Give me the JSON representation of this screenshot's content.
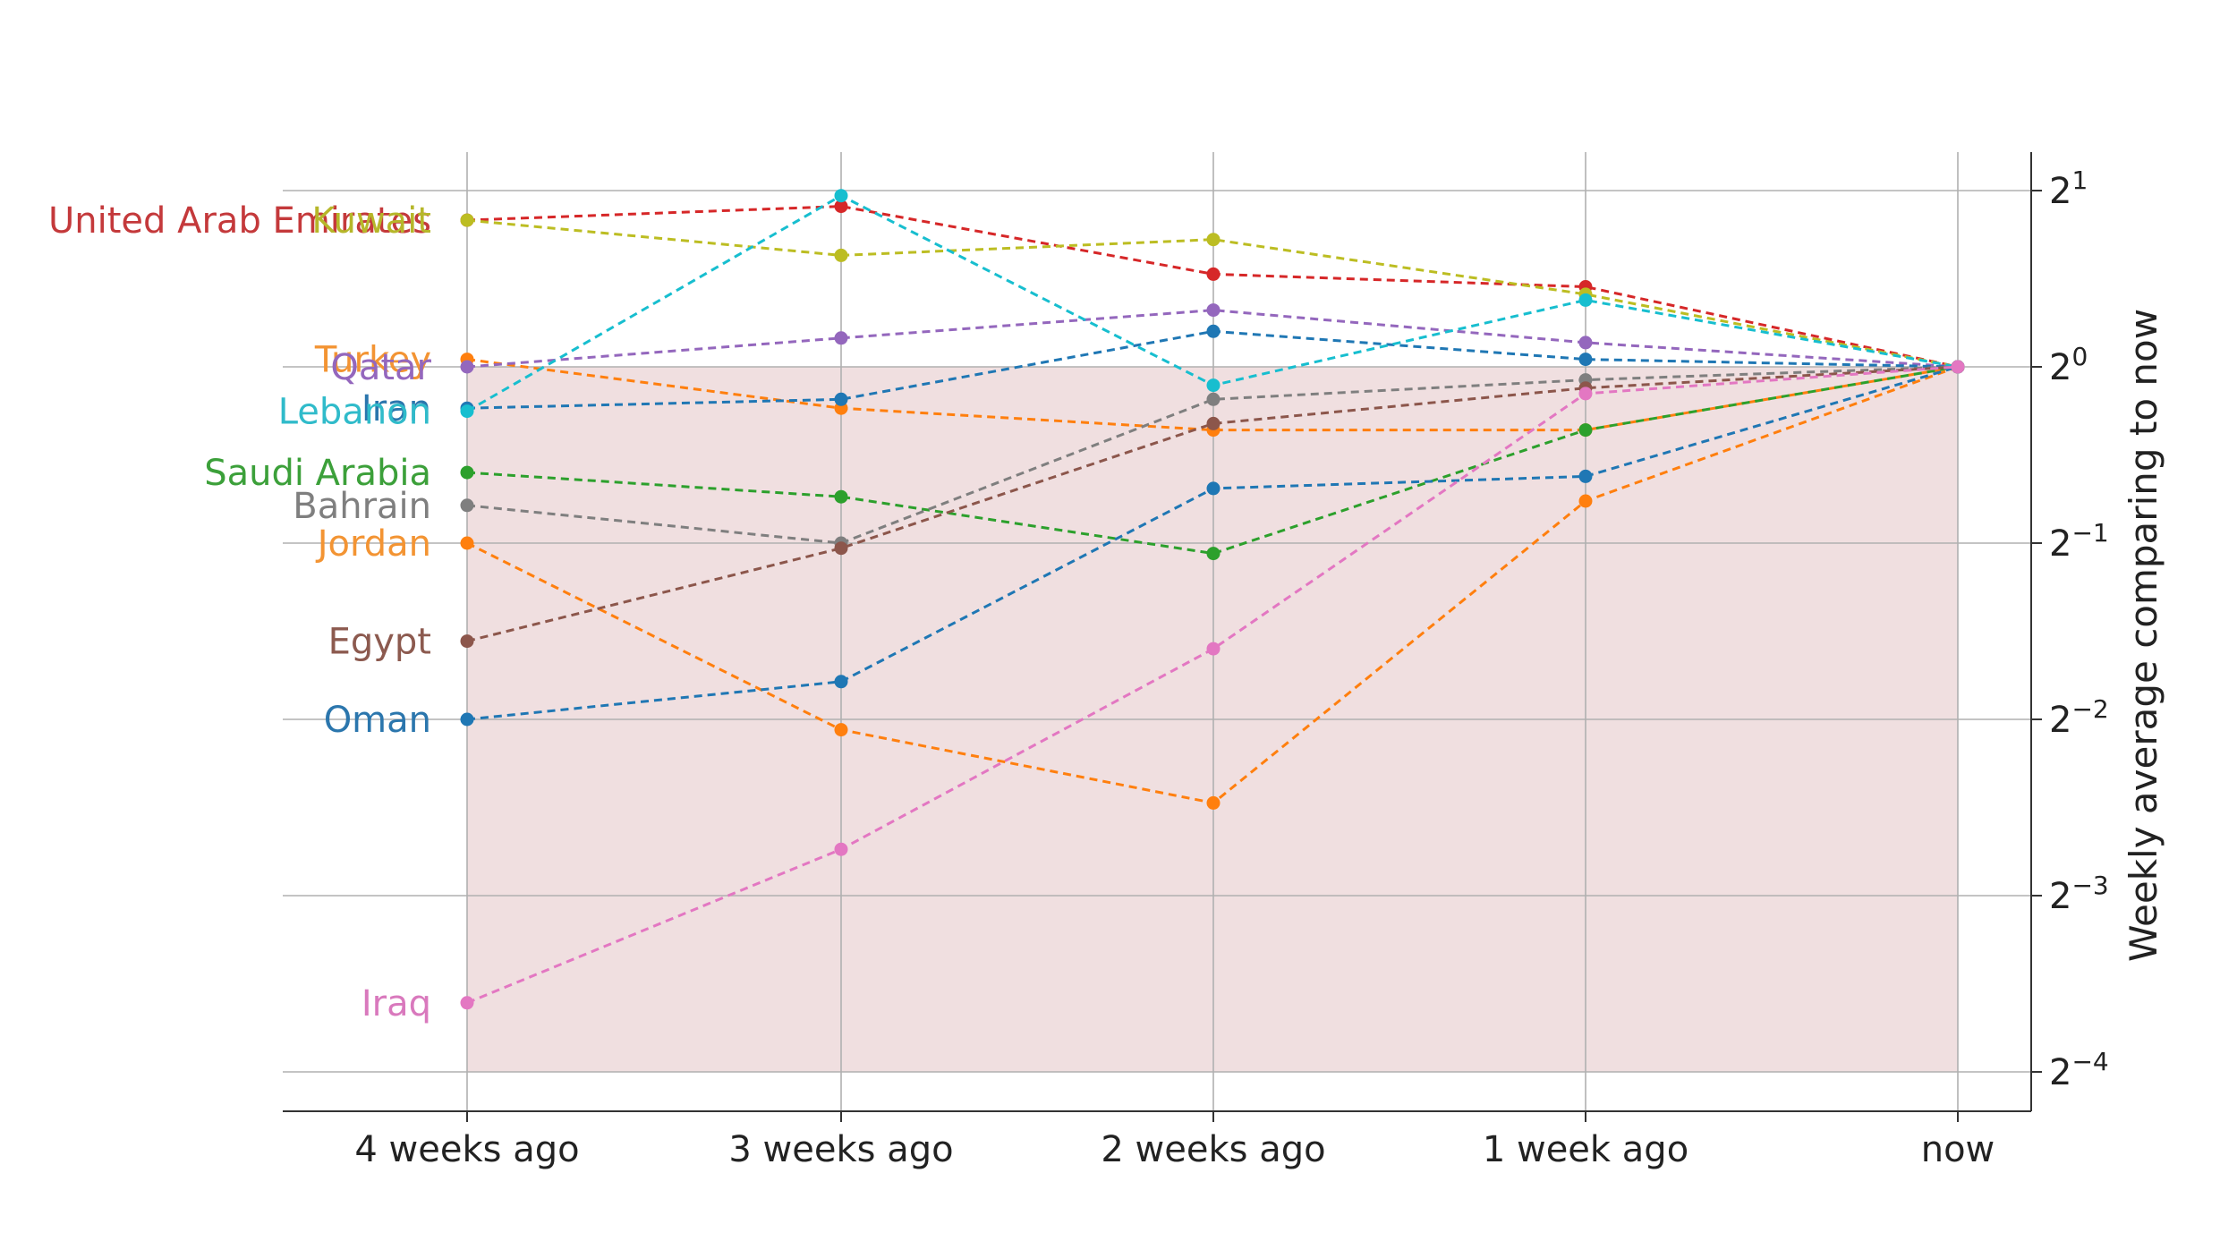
{
  "chart_data": {
    "type": "line",
    "title": "",
    "xlabel": "",
    "ylabel": "Weekly average comparing to now",
    "y_scale": "log2",
    "ylim": [
      0.05,
      2.3
    ],
    "grid": true,
    "y_axis_side": "right",
    "shaded_region": {
      "from": 0.0625,
      "to": 1,
      "color": "#f0dfe0"
    },
    "categories": [
      "4 weeks ago",
      "3 weeks ago",
      "2 weeks ago",
      "1 week ago",
      "now"
    ],
    "y_ticks": [
      {
        "value": 2,
        "base": "2",
        "exp": "1"
      },
      {
        "value": 1,
        "base": "2",
        "exp": "0"
      },
      {
        "value": 0.5,
        "base": "2",
        "exp": "−1"
      },
      {
        "value": 0.25,
        "base": "2",
        "exp": "−2"
      },
      {
        "value": 0.125,
        "base": "2",
        "exp": "−3"
      },
      {
        "value": 0.0625,
        "base": "2",
        "exp": "−4"
      }
    ],
    "series": [
      {
        "name": "United Arab Emirates",
        "color": "#d62728",
        "label_color": "#c4393b",
        "values": [
          1.78,
          1.88,
          1.44,
          1.37,
          1.0
        ]
      },
      {
        "name": "Kuwait",
        "color": "#bcbd22",
        "label_color": "#b6b72a",
        "values": [
          1.78,
          1.55,
          1.65,
          1.33,
          1.0
        ]
      },
      {
        "name": "Turkey",
        "color": "#ff7f0e",
        "label_color": "#f39433",
        "values": [
          1.03,
          0.85,
          0.78,
          0.78,
          1.0
        ]
      },
      {
        "name": "Qatar",
        "color": "#9467bd",
        "label_color": "#9467bd",
        "values": [
          1.0,
          1.12,
          1.25,
          1.1,
          1.0
        ]
      },
      {
        "name": "Iran",
        "color": "#1f77b4",
        "label_color": "#2b76ad",
        "values": [
          0.85,
          0.88,
          1.15,
          1.03,
          1.0
        ]
      },
      {
        "name": "Lebanon",
        "color": "#17becf",
        "label_color": "#30bbca",
        "values": [
          0.84,
          1.96,
          0.93,
          1.3,
          1.0
        ]
      },
      {
        "name": "Saudi Arabia",
        "color": "#2ca02c",
        "label_color": "#3ca03a",
        "values": [
          0.66,
          0.6,
          0.48,
          0.78,
          1.0
        ]
      },
      {
        "name": "Bahrain",
        "color": "#7f7f7f",
        "label_color": "#7f7f7f",
        "values": [
          0.58,
          0.5,
          0.88,
          0.95,
          1.0
        ]
      },
      {
        "name": "Jordan",
        "color": "#ff7f0e",
        "label_color": "#f39433",
        "values": [
          0.5,
          0.24,
          0.18,
          0.59,
          1.0
        ]
      },
      {
        "name": "Egypt",
        "color": "#8c564b",
        "label_color": "#8c5a4f",
        "values": [
          0.34,
          0.49,
          0.8,
          0.92,
          1.0
        ]
      },
      {
        "name": "Oman",
        "color": "#1f77b4",
        "label_color": "#2b76ad",
        "values": [
          0.25,
          0.29,
          0.62,
          0.65,
          1.0
        ]
      },
      {
        "name": "Iraq",
        "color": "#e377c2",
        "label_color": "#d979bd",
        "values": [
          0.082,
          0.15,
          0.33,
          0.9,
          1.0
        ]
      }
    ]
  }
}
